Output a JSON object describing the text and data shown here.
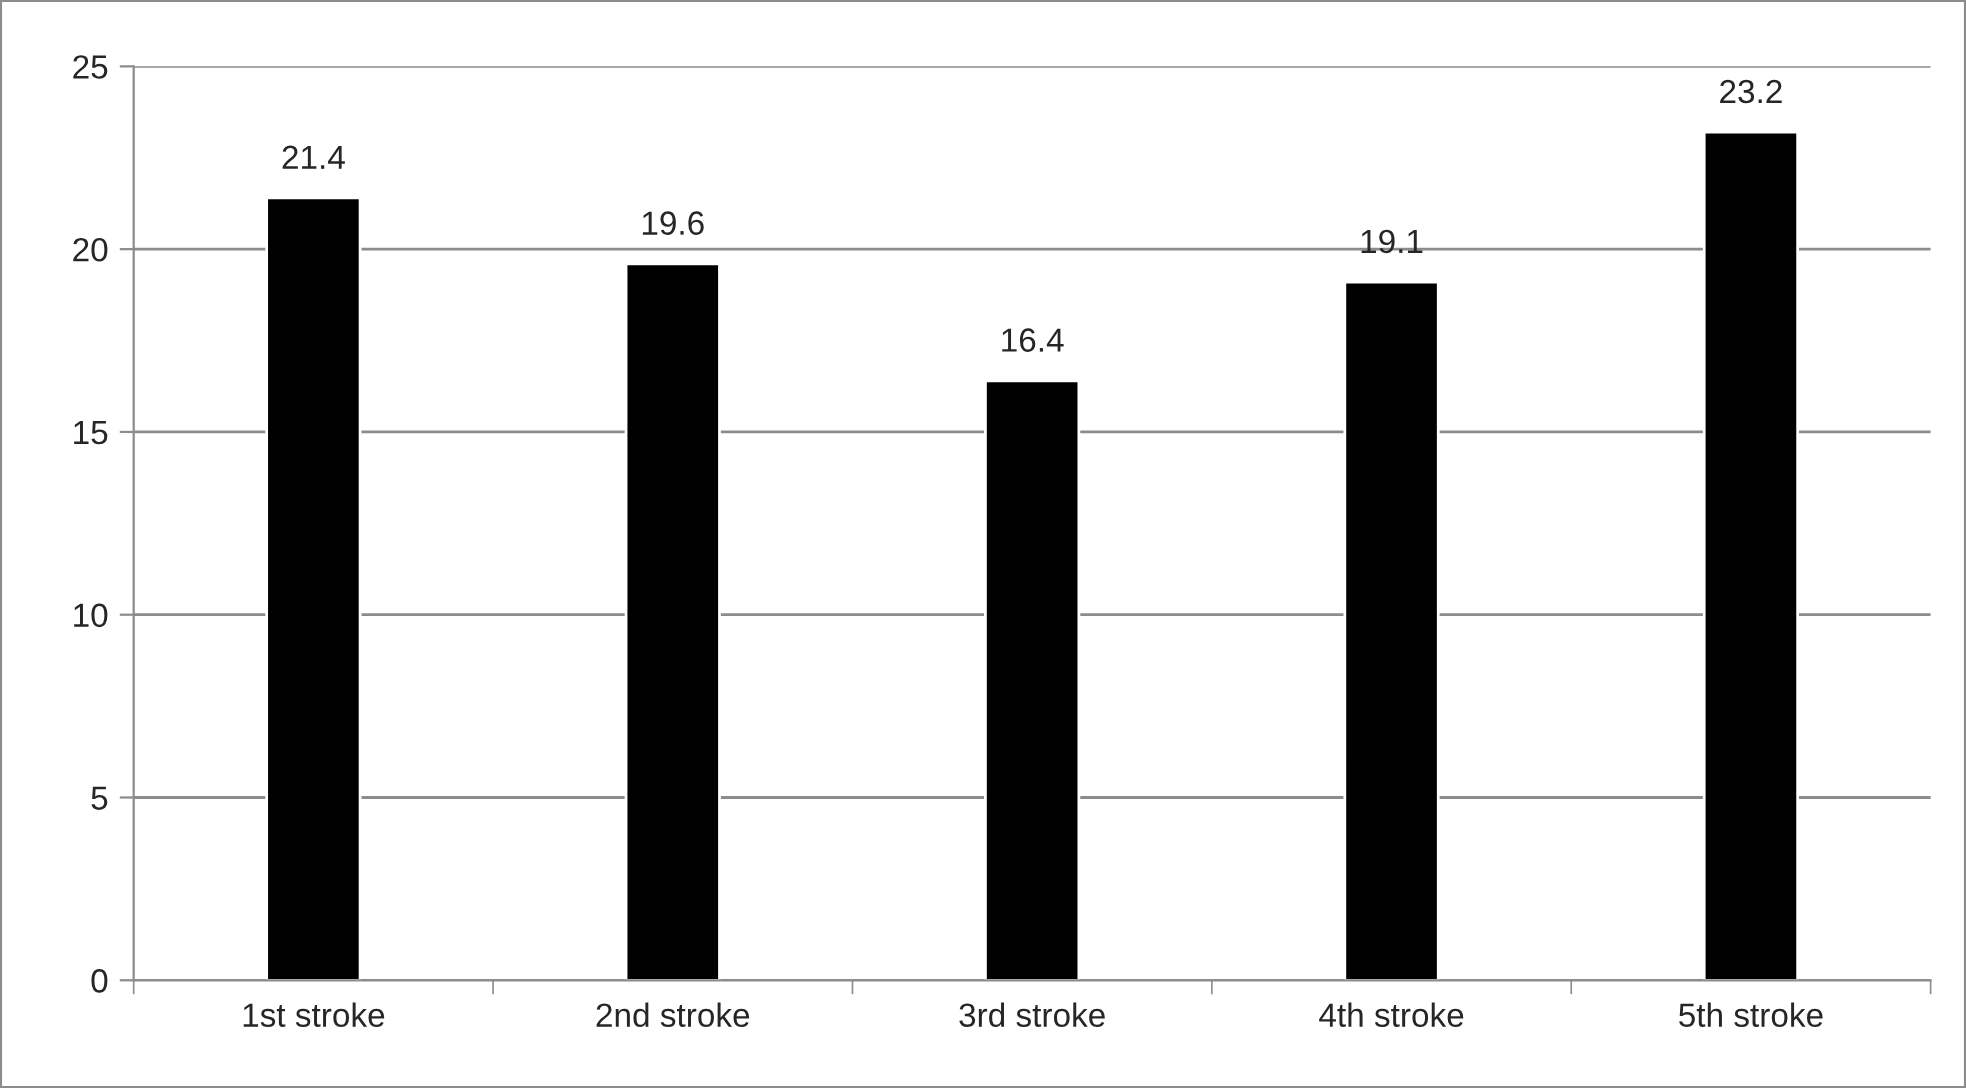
{
  "chart_data": {
    "type": "bar",
    "categories": [
      "1st stroke",
      "2nd stroke",
      "3rd stroke",
      "4th stroke",
      "5th stroke"
    ],
    "values": [
      21.4,
      19.6,
      16.4,
      19.1,
      23.2
    ],
    "color": "#000000",
    "ylim": [
      0,
      25
    ],
    "yticks": [
      0,
      5,
      10,
      15,
      20,
      25
    ],
    "grid": "y",
    "data_labels": true,
    "legend": false
  }
}
